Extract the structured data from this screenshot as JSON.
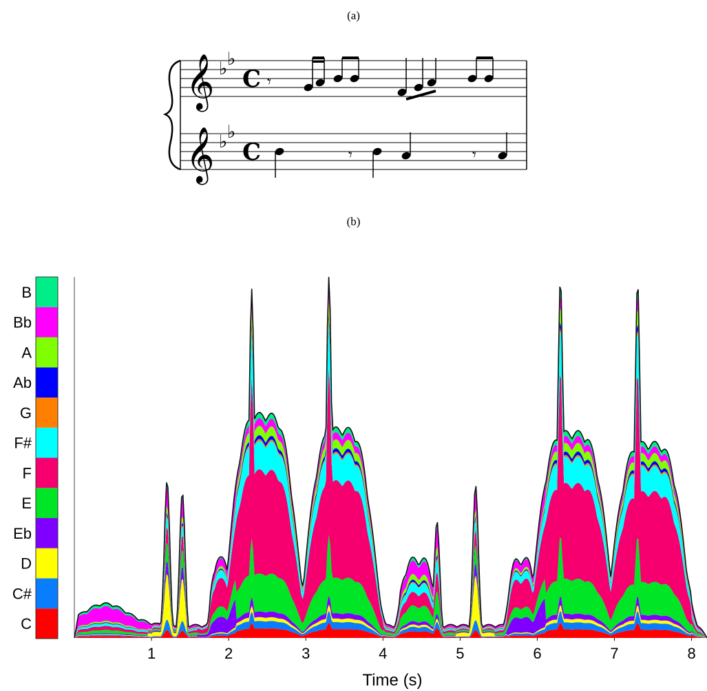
{
  "panels": {
    "a_label": "(a)",
    "b_label": "(b)"
  },
  "score": {
    "clef": "treble",
    "key_signature": "Bb major (2 flats)",
    "time_signature": "C",
    "upper_staff_notes": [
      "rest-eighth",
      "D16",
      "E16",
      "F8",
      "F8",
      "C8",
      "D16",
      "E16",
      "F8",
      "F8"
    ],
    "lower_staff_notes": [
      "Bb4",
      "rest-eighth",
      "Bb8",
      "A4",
      "rest-eighth",
      "A8"
    ]
  },
  "chart_data": {
    "type": "area",
    "title": "",
    "xlabel": "Time (s)",
    "ylabel": "",
    "xlim": [
      0,
      8.2
    ],
    "xticks": [
      1,
      2,
      3,
      4,
      5,
      6,
      7,
      8
    ],
    "stacked": true,
    "legend_position": "left",
    "legend": [
      {
        "name": "C",
        "color": "#ff0000"
      },
      {
        "name": "C#",
        "color": "#0a7dff"
      },
      {
        "name": "D",
        "color": "#ffff00"
      },
      {
        "name": "Eb",
        "color": "#7f00ff"
      },
      {
        "name": "E",
        "color": "#00e626"
      },
      {
        "name": "F",
        "color": "#f5006e"
      },
      {
        "name": "F#",
        "color": "#00ffff"
      },
      {
        "name": "G",
        "color": "#ff7f00"
      },
      {
        "name": "Ab",
        "color": "#0000ff"
      },
      {
        "name": "A",
        "color": "#7fff00"
      },
      {
        "name": "Bb",
        "color": "#ff00ff"
      },
      {
        "name": "B",
        "color": "#00ee88"
      }
    ],
    "total_peaks": [
      {
        "t": 1.2,
        "value": 0.42
      },
      {
        "t": 1.4,
        "value": 0.38
      },
      {
        "t": 2.3,
        "value": 0.96
      },
      {
        "t": 3.3,
        "value": 1.0
      },
      {
        "t": 4.7,
        "value": 0.3
      },
      {
        "t": 5.2,
        "value": 0.4
      },
      {
        "t": 6.3,
        "value": 0.99
      },
      {
        "t": 7.3,
        "value": 0.98
      }
    ]
  }
}
